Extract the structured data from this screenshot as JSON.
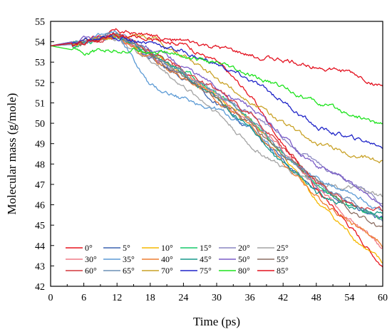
{
  "chart_data": {
    "type": "line",
    "xlabel": "Time (ps)",
    "ylabel": "Molecular mass (g/mole)",
    "xlim": [
      0,
      60
    ],
    "ylim": [
      42,
      55
    ],
    "xticks": [
      "0",
      "6",
      "12",
      "18",
      "24",
      "30",
      "36",
      "42",
      "48",
      "54",
      "60"
    ],
    "yticks": [
      "42",
      "43",
      "44",
      "45",
      "46",
      "47",
      "48",
      "49",
      "50",
      "51",
      "52",
      "53",
      "54",
      "55"
    ],
    "grid": false,
    "legend_placement": "bottom-left",
    "x": [
      0,
      6,
      12,
      18,
      24,
      30,
      36,
      42,
      48,
      54,
      60
    ],
    "series": [
      {
        "name": "0°",
        "color": "#e8141e",
        "values": [
          53.8,
          54.1,
          54.5,
          54.3,
          53.9,
          53.0,
          51.4,
          49.0,
          46.8,
          45.0,
          43.0
        ]
      },
      {
        "name": "5°",
        "color": "#3b63b0",
        "values": [
          53.8,
          54.0,
          54.3,
          53.2,
          52.3,
          51.0,
          49.8,
          48.2,
          46.8,
          46.0,
          45.3
        ]
      },
      {
        "name": "10°",
        "color": "#f5b800",
        "values": [
          53.8,
          54.0,
          54.3,
          53.4,
          52.4,
          51.3,
          50.2,
          48.4,
          46.2,
          44.6,
          43.1
        ]
      },
      {
        "name": "15°",
        "color": "#17c96a",
        "values": [
          53.8,
          53.9,
          54.2,
          53.5,
          52.6,
          51.5,
          50.3,
          48.6,
          47.0,
          45.9,
          45.3
        ]
      },
      {
        "name": "20°",
        "color": "#8a86c2",
        "values": [
          53.8,
          53.9,
          54.4,
          53.3,
          52.4,
          51.3,
          50.5,
          49.2,
          48.0,
          47.2,
          46.0
        ]
      },
      {
        "name": "25°",
        "color": "#a3a3a3",
        "values": [
          53.8,
          54.0,
          54.2,
          53.1,
          51.8,
          50.6,
          48.9,
          47.8,
          47.2,
          46.8,
          46.4
        ]
      },
      {
        "name": "30°",
        "color": "#f07a86",
        "values": [
          53.8,
          54.0,
          54.3,
          53.4,
          52.5,
          51.3,
          50.1,
          48.7,
          46.9,
          45.3,
          43.9
        ]
      },
      {
        "name": "35°",
        "color": "#5b9ad5",
        "values": [
          53.8,
          54.1,
          54.4,
          51.8,
          51.2,
          50.7,
          49.8,
          48.3,
          47.3,
          46.7,
          45.6
        ]
      },
      {
        "name": "40°",
        "color": "#ed7d31",
        "values": [
          53.8,
          54.0,
          54.3,
          53.2,
          52.2,
          51.2,
          49.9,
          48.1,
          46.4,
          45.2,
          44.1
        ]
      },
      {
        "name": "45°",
        "color": "#16998a",
        "values": [
          53.8,
          54.0,
          54.3,
          53.4,
          52.4,
          51.2,
          49.8,
          48.0,
          46.6,
          45.9,
          45.6
        ]
      },
      {
        "name": "50°",
        "color": "#7a5cc7",
        "values": [
          53.8,
          54.1,
          54.3,
          53.7,
          52.8,
          51.7,
          50.8,
          49.3,
          47.9,
          47.1,
          45.9
        ]
      },
      {
        "name": "55°",
        "color": "#8c6e63",
        "values": [
          53.8,
          54.0,
          54.3,
          53.4,
          52.3,
          51.2,
          50.0,
          48.5,
          47.2,
          45.8,
          44.8
        ]
      },
      {
        "name": "60°",
        "color": "#d4363c",
        "values": [
          53.8,
          54.0,
          54.4,
          53.6,
          52.6,
          51.6,
          50.5,
          48.8,
          47.1,
          46.0,
          45.7
        ]
      },
      {
        "name": "65°",
        "color": "#6c8fb5",
        "values": [
          53.8,
          54.0,
          54.4,
          53.5,
          52.5,
          51.4,
          50.3,
          48.6,
          47.0,
          46.2,
          45.3
        ]
      },
      {
        "name": "70°",
        "color": "#c9a227",
        "values": [
          53.8,
          54.0,
          54.3,
          54.2,
          53.3,
          52.2,
          51.1,
          50.0,
          49.0,
          48.5,
          48.1
        ]
      },
      {
        "name": "75°",
        "color": "#1f24c8",
        "values": [
          53.8,
          54.0,
          54.2,
          54.0,
          53.5,
          52.9,
          52.1,
          51.1,
          49.8,
          49.3,
          48.9
        ]
      },
      {
        "name": "80°",
        "color": "#1de31d",
        "values": [
          53.8,
          53.5,
          53.6,
          53.6,
          53.3,
          52.9,
          52.3,
          51.8,
          51.0,
          50.5,
          49.9
        ]
      },
      {
        "name": "85°",
        "color": "#e3101e",
        "values": [
          53.8,
          54.0,
          54.3,
          54.2,
          54.0,
          53.7,
          53.3,
          53.1,
          52.8,
          52.5,
          51.8
        ]
      }
    ]
  }
}
